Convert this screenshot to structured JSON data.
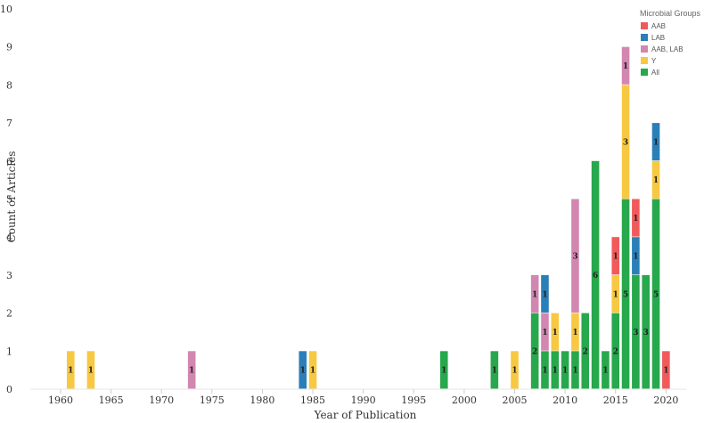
{
  "chart_data": {
    "type": "bar",
    "stacked": true,
    "xlabel": "Year of Publication",
    "ylabel": "Count of Articles",
    "ylim": [
      0,
      10
    ],
    "xlim": [
      1957,
      2022
    ],
    "x_ticks": [
      1960,
      1965,
      1970,
      1975,
      1980,
      1985,
      1990,
      1995,
      2000,
      2005,
      2010,
      2015,
      2020
    ],
    "y_ticks": [
      0,
      1,
      2,
      3,
      4,
      5,
      6,
      7,
      8,
      9,
      10
    ],
    "legend": {
      "title": "Microbial Groups",
      "position": "top-right",
      "items": [
        {
          "label": "AAB",
          "color": "#f05a5b"
        },
        {
          "label": "LAB",
          "color": "#2b7fb8"
        },
        {
          "label": "AAB, LAB",
          "color": "#d287b0"
        },
        {
          "label": "Y",
          "color": "#f7c842"
        },
        {
          "label": "All",
          "color": "#27a84c"
        }
      ]
    },
    "stack_order": [
      "All",
      "Y",
      "AAB, LAB",
      "LAB",
      "AAB"
    ],
    "series": [
      {
        "name": "All",
        "color": "#27a84c",
        "data": [
          {
            "x": 1998,
            "y": 1
          },
          {
            "x": 2003,
            "y": 1
          },
          {
            "x": 2007,
            "y": 2
          },
          {
            "x": 2008,
            "y": 1
          },
          {
            "x": 2009,
            "y": 1
          },
          {
            "x": 2010,
            "y": 1
          },
          {
            "x": 2011,
            "y": 1
          },
          {
            "x": 2012,
            "y": 2
          },
          {
            "x": 2013,
            "y": 6
          },
          {
            "x": 2014,
            "y": 1
          },
          {
            "x": 2015,
            "y": 2
          },
          {
            "x": 2016,
            "y": 5
          },
          {
            "x": 2017,
            "y": 3
          },
          {
            "x": 2018,
            "y": 3
          },
          {
            "x": 2019,
            "y": 5
          }
        ]
      },
      {
        "name": "Y",
        "color": "#f7c842",
        "data": [
          {
            "x": 1961,
            "y": 1
          },
          {
            "x": 1963,
            "y": 1
          },
          {
            "x": 1985,
            "y": 1
          },
          {
            "x": 2005,
            "y": 1
          },
          {
            "x": 2009,
            "y": 1
          },
          {
            "x": 2011,
            "y": 1
          },
          {
            "x": 2015,
            "y": 1
          },
          {
            "x": 2016,
            "y": 3
          },
          {
            "x": 2019,
            "y": 1
          }
        ]
      },
      {
        "name": "AAB, LAB",
        "color": "#d287b0",
        "data": [
          {
            "x": 1973,
            "y": 1
          },
          {
            "x": 2007,
            "y": 1
          },
          {
            "x": 2008,
            "y": 1
          },
          {
            "x": 2011,
            "y": 3
          },
          {
            "x": 2016,
            "y": 1
          }
        ]
      },
      {
        "name": "LAB",
        "color": "#2b7fb8",
        "data": [
          {
            "x": 1984,
            "y": 1
          },
          {
            "x": 2008,
            "y": 1
          },
          {
            "x": 2017,
            "y": 1
          },
          {
            "x": 2019,
            "y": 1
          }
        ]
      },
      {
        "name": "AAB",
        "color": "#f05a5b",
        "data": [
          {
            "x": 2015,
            "y": 1
          },
          {
            "x": 2017,
            "y": 1
          },
          {
            "x": 2020,
            "y": 1
          }
        ]
      }
    ]
  }
}
